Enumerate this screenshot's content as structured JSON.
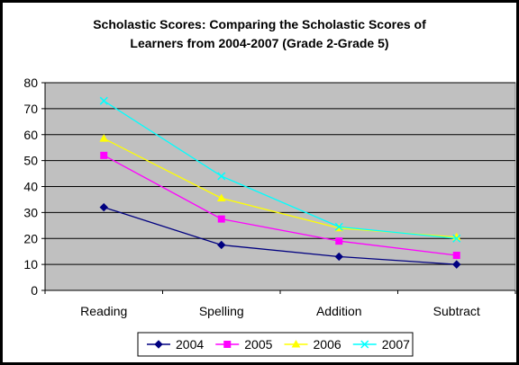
{
  "chart_data": {
    "type": "line",
    "title_line1": "Scholastic Scores: Comparing the Scholastic Scores of",
    "title_line2": "Learners from 2004-2007 (Grade 2-Grade 5)",
    "categories": [
      "Reading",
      "Spelling",
      "Addition",
      "Subtract"
    ],
    "ylim": [
      0,
      80
    ],
    "yticks": [
      0,
      10,
      20,
      30,
      40,
      50,
      60,
      70,
      80
    ],
    "grid": true,
    "plot_background": "#c0c0c0",
    "legend_position": "bottom",
    "series": [
      {
        "name": "2004",
        "color": "#000080",
        "marker": "diamond",
        "values": [
          32,
          17.5,
          13,
          10
        ]
      },
      {
        "name": "2005",
        "color": "#ff00ff",
        "marker": "square",
        "values": [
          52,
          27.5,
          19,
          13.5
        ]
      },
      {
        "name": "2006",
        "color": "#ffff00",
        "marker": "triangle",
        "values": [
          58.5,
          35.5,
          24,
          20.5
        ]
      },
      {
        "name": "2007",
        "color": "#00ffff",
        "marker": "x",
        "values": [
          73,
          44,
          24.5,
          20
        ]
      }
    ]
  }
}
